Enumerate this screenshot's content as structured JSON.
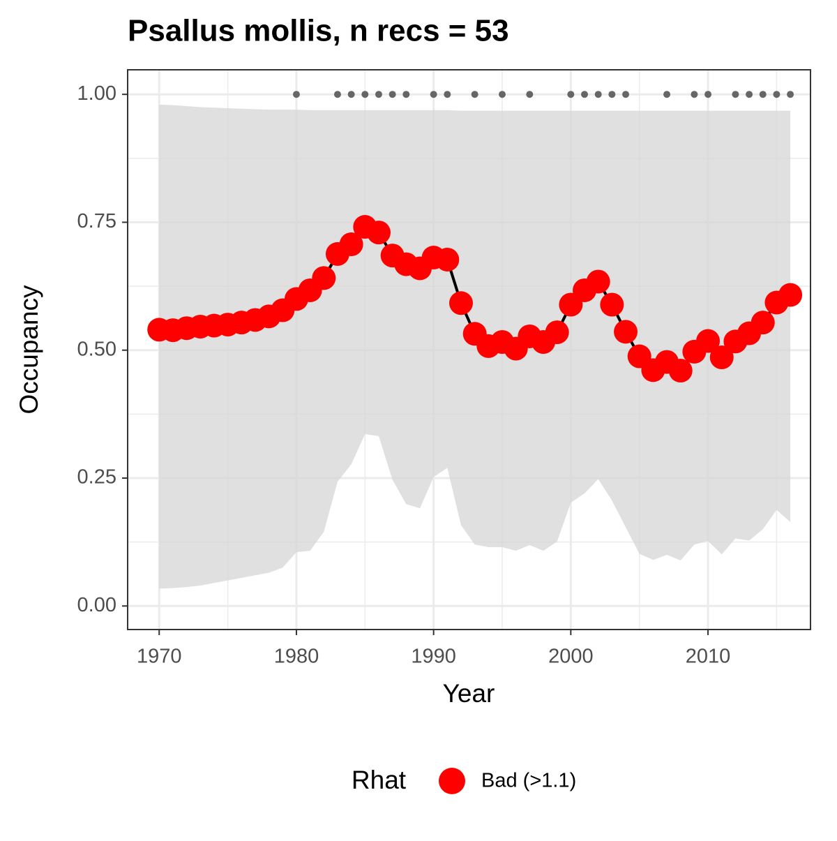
{
  "chart_data": {
    "type": "line",
    "title": "Psallus mollis, n recs = 53",
    "x_label": "Year",
    "y_label": "Occupancy",
    "x": [
      1970,
      1971,
      1972,
      1973,
      1974,
      1975,
      1976,
      1977,
      1978,
      1979,
      1980,
      1981,
      1982,
      1983,
      1984,
      1985,
      1986,
      1987,
      1988,
      1989,
      1990,
      1991,
      1992,
      1993,
      1994,
      1995,
      1996,
      1997,
      1998,
      1999,
      2000,
      2001,
      2002,
      2003,
      2004,
      2005,
      2006,
      2007,
      2008,
      2009,
      2010,
      2011,
      2012,
      2013,
      2014,
      2015,
      2016
    ],
    "series": [
      {
        "name": "Bad (>1.1)",
        "color": "#ff0000",
        "line_color": "#000000",
        "values": [
          0.54,
          0.539,
          0.543,
          0.546,
          0.548,
          0.55,
          0.554,
          0.559,
          0.566,
          0.578,
          0.6,
          0.617,
          0.641,
          0.688,
          0.707,
          0.741,
          0.73,
          0.685,
          0.668,
          0.66,
          0.681,
          0.677,
          0.592,
          0.532,
          0.508,
          0.516,
          0.503,
          0.527,
          0.516,
          0.535,
          0.589,
          0.617,
          0.634,
          0.589,
          0.536,
          0.488,
          0.461,
          0.477,
          0.46,
          0.497,
          0.518,
          0.486,
          0.517,
          0.533,
          0.554,
          0.593,
          0.608
        ]
      }
    ],
    "band": {
      "color": "#d6d6d6",
      "lower": [
        0.034,
        0.035,
        0.037,
        0.04,
        0.045,
        0.05,
        0.055,
        0.06,
        0.065,
        0.075,
        0.105,
        0.108,
        0.145,
        0.243,
        0.277,
        0.336,
        0.332,
        0.247,
        0.199,
        0.191,
        0.252,
        0.27,
        0.158,
        0.12,
        0.115,
        0.115,
        0.108,
        0.119,
        0.108,
        0.126,
        0.202,
        0.22,
        0.248,
        0.206,
        0.154,
        0.102,
        0.09,
        0.1,
        0.089,
        0.12,
        0.127,
        0.101,
        0.132,
        0.128,
        0.15,
        0.188,
        0.164
      ],
      "upper": [
        0.98,
        0.979,
        0.977,
        0.975,
        0.974,
        0.973,
        0.972,
        0.971,
        0.97,
        0.97,
        0.97,
        0.969,
        0.969,
        0.969,
        0.969,
        0.969,
        0.969,
        0.969,
        0.969,
        0.969,
        0.969,
        0.969,
        0.968,
        0.968,
        0.968,
        0.968,
        0.968,
        0.968,
        0.968,
        0.968,
        0.968,
        0.968,
        0.968,
        0.968,
        0.968,
        0.968,
        0.968,
        0.968,
        0.968,
        0.968,
        0.968,
        0.968,
        0.968,
        0.968,
        0.968,
        0.968,
        0.968
      ]
    },
    "records": {
      "color": "#666666",
      "x": [
        1980,
        1983,
        1984,
        1985,
        1986,
        1987,
        1988,
        1990,
        1991,
        1993,
        1995,
        1997,
        2000,
        2001,
        2002,
        2003,
        2004,
        2007,
        2009,
        2010,
        2012,
        2013,
        2014,
        2015,
        2016
      ],
      "values": [
        1,
        1,
        1,
        1,
        1,
        1,
        1,
        1,
        1,
        1,
        1,
        1,
        1,
        1,
        1,
        1,
        1,
        1,
        1,
        1,
        1,
        1,
        1,
        1,
        1
      ]
    },
    "xlim": [
      1967.7,
      2017.47
    ],
    "ylim": [
      -0.046,
      1.048
    ],
    "xticks": [
      1970,
      1980,
      1990,
      2000,
      2010
    ],
    "yticks": [
      {
        "value": 0,
        "label": "0.00"
      },
      {
        "value": 0.25,
        "label": "0.25"
      },
      {
        "value": 0.5,
        "label": "0.50"
      },
      {
        "value": 0.75,
        "label": "0.75"
      },
      {
        "value": 1,
        "label": "1.00"
      }
    ],
    "minor_xticks": [
      1975,
      1985,
      1995,
      2005,
      2015
    ],
    "minor_yticks": [
      0.125,
      0.375,
      0.625,
      0.875
    ],
    "grid": true,
    "legend_title": "Rhat",
    "legend": "bottom"
  }
}
